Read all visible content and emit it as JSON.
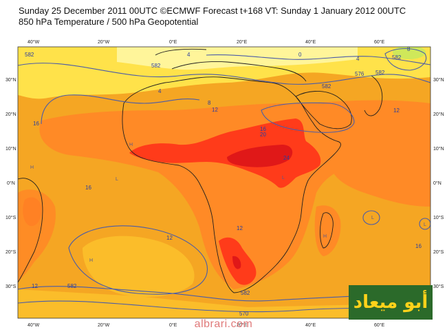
{
  "header": {
    "title": "Sunday 25 December 2011 00UTC ©ECMWF Forecast t+168 VT: Sunday 1 January 2012 00UTC",
    "subtitle": "850 hPa Temperature / 500 hPa Geopotential"
  },
  "map": {
    "lat_labels_left": [
      "30°N",
      "20°N",
      "10°N",
      "0°N",
      "10°S",
      "20°S",
      "30°S"
    ],
    "lat_labels_right": [
      "30°N",
      "20°N",
      "10°N",
      "0°N",
      "10°S",
      "20°S",
      "30°S"
    ],
    "lon_labels": [
      "40°W",
      "20°W",
      "0°E",
      "20°E",
      "40°E",
      "60°E"
    ],
    "contour_labels": [
      "582",
      "4",
      "4",
      "0",
      "576",
      "8",
      "12",
      "12",
      "16",
      "16",
      "20",
      "24",
      "12",
      "16",
      "12",
      "582",
      "582",
      "582",
      "570",
      "582",
      "582",
      "582",
      "8",
      "4",
      "16",
      "12"
    ],
    "pressure_marks": [
      "H",
      "H",
      "H",
      "H",
      "L",
      "L",
      "L",
      "L"
    ],
    "colors": {
      "ocean_orange": "#f5a623",
      "warm_orange": "#ff6d1f",
      "hot_red": "#ff3b1a",
      "deep_red": "#e01818",
      "yellow": "#ffe24a",
      "light_yellow": "#fff59a",
      "lime": "#cfe85a",
      "contour_blue": "#4a5ca8",
      "coast": "#1e1e1e"
    }
  },
  "watermark": {
    "logo_text": "أبو ميعاد",
    "site": "albrari.com",
    "logo_color": "#ffd21a",
    "logo_bg": "#2b6a2a"
  }
}
